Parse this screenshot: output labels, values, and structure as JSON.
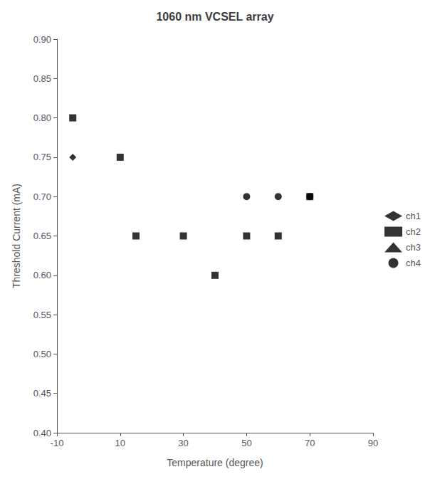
{
  "chart_data": {
    "type": "scatter",
    "title": "1060 nm VCSEL array",
    "x_label": "Temperature (degree)",
    "y_label": "Threshold Current (mA)",
    "xlim": [
      -10,
      90
    ],
    "ylim": [
      0.4,
      0.9
    ],
    "xticks": [
      -10,
      10,
      30,
      50,
      70,
      90
    ],
    "yticks": [
      {
        "value": 0.4,
        "label": "0.40"
      },
      {
        "value": 0.45,
        "label": "0.45"
      },
      {
        "value": 0.5,
        "label": "0.50"
      },
      {
        "value": 0.55,
        "label": "0.55"
      },
      {
        "value": 0.6,
        "label": "0.60"
      },
      {
        "value": 0.65,
        "label": "0.65"
      },
      {
        "value": 0.7,
        "label": "0.70"
      },
      {
        "value": 0.75,
        "label": "0.75"
      },
      {
        "value": 0.8,
        "label": "0.80"
      },
      {
        "value": 0.85,
        "label": "0.85"
      },
      {
        "value": 0.9,
        "label": "0.90"
      }
    ],
    "grid": false,
    "legend": "right",
    "series": [
      {
        "name": "ch1",
        "color": "black",
        "marker": "diamond",
        "x": [
          -5
        ],
        "values": [
          0.75
        ]
      },
      {
        "name": "ch2",
        "color": "black",
        "marker": "square",
        "x": [
          -5,
          10,
          15,
          30,
          40,
          50,
          60,
          70
        ],
        "values": [
          0.8,
          0.75,
          0.65,
          0.65,
          0.6,
          0.65,
          0.65,
          0.7
        ]
      },
      {
        "name": "ch3",
        "color": "black",
        "marker": "triangle",
        "x": [],
        "values": []
      },
      {
        "name": "ch4",
        "color": "black",
        "marker": "circle",
        "x": [
          50,
          60,
          70
        ],
        "values": [
          0.7,
          0.7,
          0.7
        ]
      }
    ]
  }
}
